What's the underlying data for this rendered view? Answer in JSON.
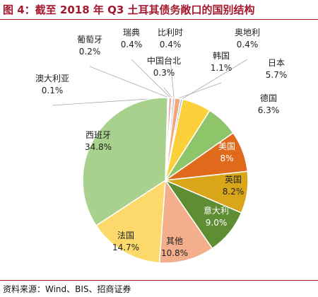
{
  "header": {
    "title": "图 4：截至 2018 年 Q3 土耳其债务敞口的国别结构"
  },
  "footer": {
    "source": "资料来源：Wind、BIS、招商证券"
  },
  "chart_data": {
    "type": "pie",
    "title": "图 4：截至 2018 年 Q3 土耳其债务敞口的国别结构",
    "legend": "none",
    "slices": [
      {
        "name": "葡萄牙",
        "value": 0.2,
        "label": "0.2%",
        "color": "#5b9bd5"
      },
      {
        "name": "瑞典",
        "value": 0.4,
        "label": "0.4%",
        "color": "#e46c5a"
      },
      {
        "name": "中国台北",
        "value": 0.3,
        "label": "0.3%",
        "color": "#f9cc79"
      },
      {
        "name": "比利时",
        "value": 0.4,
        "label": "0.4%",
        "color": "#a7b8d6"
      },
      {
        "name": "韩国",
        "value": 1.1,
        "label": "1.1%",
        "color": "#f2a679"
      },
      {
        "name": "奥地利",
        "value": 0.4,
        "label": "0.4%",
        "color": "#9bbbe0"
      },
      {
        "name": "日本",
        "value": 5.7,
        "label": "5.7%",
        "color": "#fcd03b"
      },
      {
        "name": "德国",
        "value": 6.3,
        "label": "6.3%",
        "color": "#8fc56a"
      },
      {
        "name": "美国",
        "value": 8,
        "label": "8%",
        "color": "#e06a1b"
      },
      {
        "name": "英国",
        "value": 8.2,
        "label": "8.2%",
        "color": "#d9a619"
      },
      {
        "name": "意大利",
        "value": 9.0,
        "label": "9.0%",
        "color": "#5e8d33"
      },
      {
        "name": "其他",
        "value": 10.8,
        "label": "10.8%",
        "color": "#f3af8c"
      },
      {
        "name": "法国",
        "value": 14.7,
        "label": "14.7%",
        "color": "#fcd96a"
      },
      {
        "name": "西班牙",
        "value": 34.8,
        "label": "34.8%",
        "color": "#a9d18e"
      },
      {
        "name": "澳大利亚",
        "value": 0.1,
        "label": "0.1%",
        "color": "#9e9e9e"
      }
    ]
  }
}
